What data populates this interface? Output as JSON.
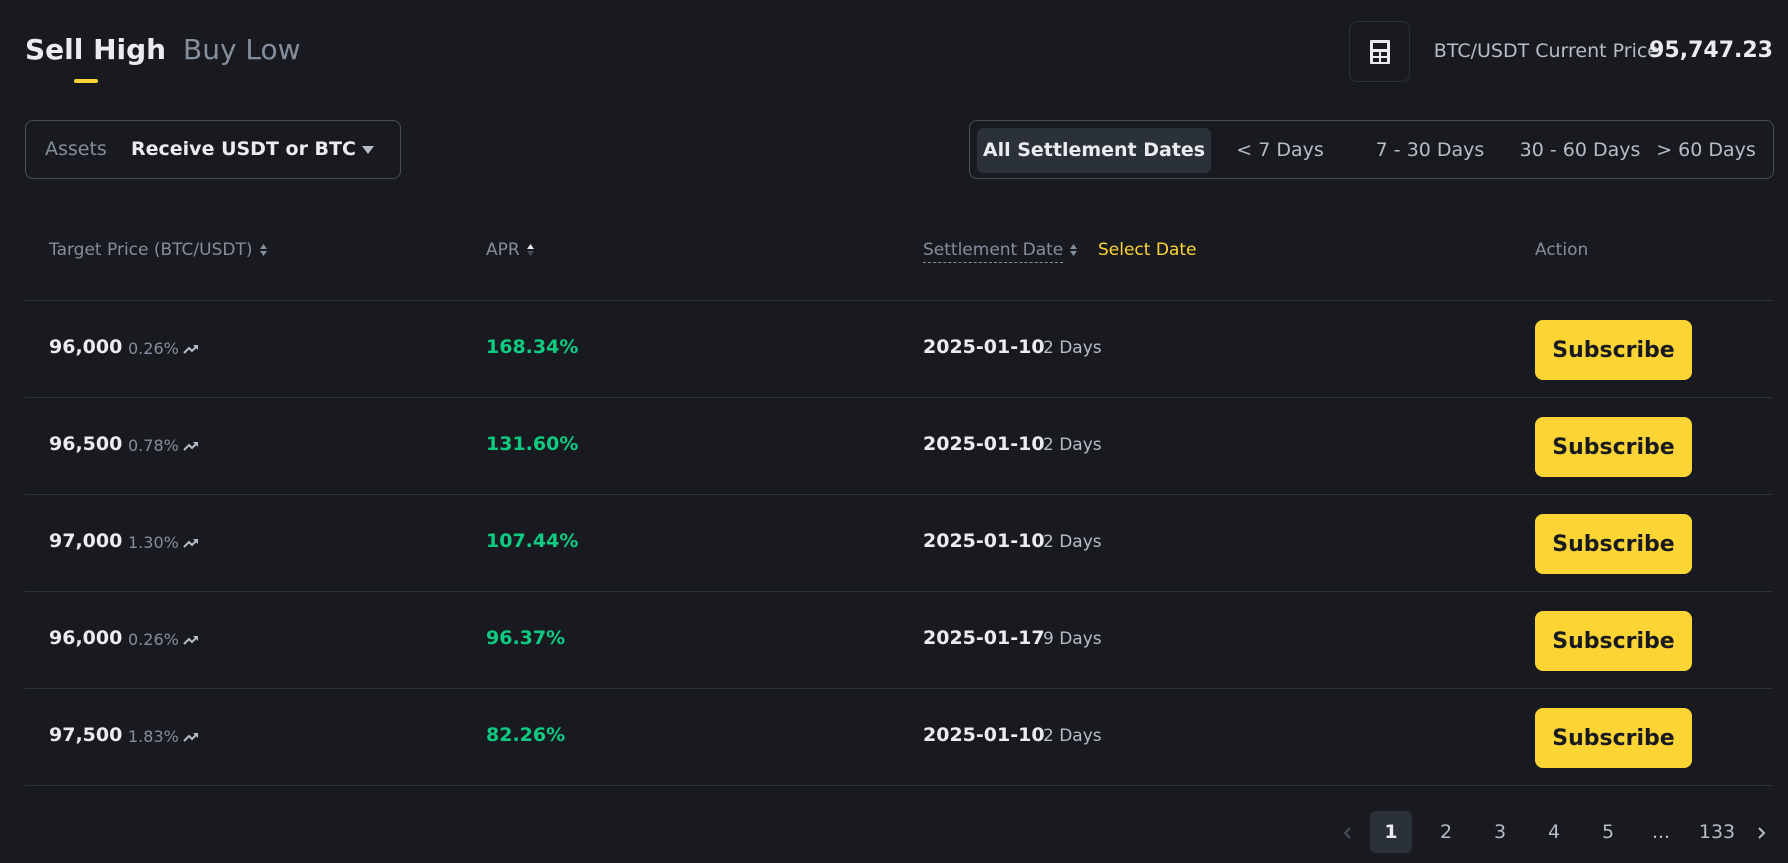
{
  "tabs": {
    "sell_high": "Sell High",
    "buy_low": "Buy Low"
  },
  "header": {
    "calculator_icon": "calculator-icon",
    "price_label": "BTC/USDT Current Price",
    "price_value": "95,747.23"
  },
  "assets": {
    "label": "Assets",
    "value": "Receive USDT or BTC"
  },
  "settlement_filters": [
    "All Settlement Dates",
    "< 7 Days",
    "7 - 30 Days",
    "30 - 60 Days",
    "> 60 Days"
  ],
  "selected_filter": "All Settlement Dates",
  "columns": {
    "target_price": "Target Price (BTC/USDT)",
    "apr": "APR",
    "settlement_date": "Settlement Date",
    "select_date": "Select Date",
    "action": "Action"
  },
  "rows": [
    {
      "price": "96,000",
      "change": "0.26%",
      "apr": "168.34%",
      "date": "2025-01-10",
      "days": "2 Days",
      "action": "Subscribe"
    },
    {
      "price": "96,500",
      "change": "0.78%",
      "apr": "131.60%",
      "date": "2025-01-10",
      "days": "2 Days",
      "action": "Subscribe"
    },
    {
      "price": "97,000",
      "change": "1.30%",
      "apr": "107.44%",
      "date": "2025-01-10",
      "days": "2 Days",
      "action": "Subscribe"
    },
    {
      "price": "96,000",
      "change": "0.26%",
      "apr": "96.37%",
      "date": "2025-01-17",
      "days": "9 Days",
      "action": "Subscribe"
    },
    {
      "price": "97,500",
      "change": "1.83%",
      "apr": "82.26%",
      "date": "2025-01-10",
      "days": "2 Days",
      "action": "Subscribe"
    }
  ],
  "pagination": {
    "pages": [
      "1",
      "2",
      "3",
      "4",
      "5",
      "...",
      "133"
    ],
    "current": "1"
  },
  "colors": {
    "background": "#181a20",
    "accent": "#fcd535",
    "positive": "#0ecb81",
    "muted": "#848e9c"
  }
}
